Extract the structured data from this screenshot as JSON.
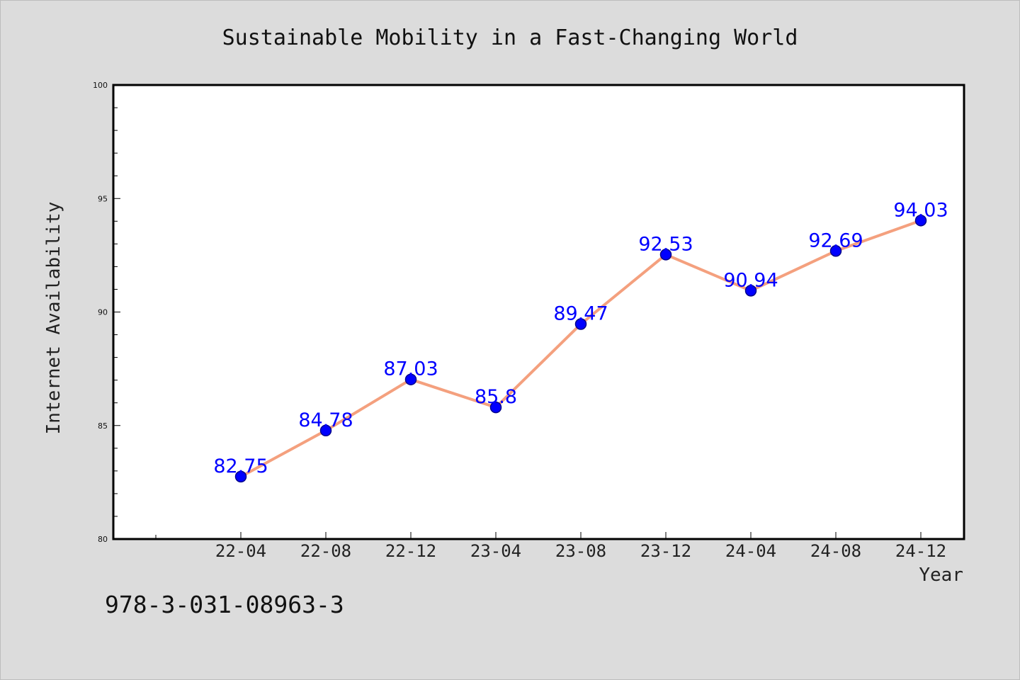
{
  "chart_data": {
    "type": "line",
    "title": "Sustainable Mobility in a Fast-Changing World",
    "xlabel": "Year",
    "ylabel": "Internet Availability",
    "categories": [
      "22-04",
      "22-08",
      "22-12",
      "23-04",
      "23-08",
      "23-12",
      "24-04",
      "24-08",
      "24-12"
    ],
    "series": [
      {
        "values": [
          82.75,
          84.78,
          87.03,
          85.8,
          89.47,
          92.53,
          90.94,
          92.69,
          94.03
        ],
        "labels": [
          "82.75",
          "84.78",
          "87.03",
          "85.8",
          "89.47",
          "92.53",
          "90.94",
          "92.69",
          "94.03"
        ]
      }
    ],
    "ylim": [
      80,
      100
    ],
    "yticks": [
      "80",
      "85",
      "90",
      "95",
      "100"
    ],
    "grid": false,
    "legend": "none",
    "colors": {
      "line": "#f4a07e",
      "marker": "#0000ff",
      "marker_edge": "#00008b",
      "data_label": "#0000ff"
    }
  },
  "footnote": "978-3-031-08963-3"
}
